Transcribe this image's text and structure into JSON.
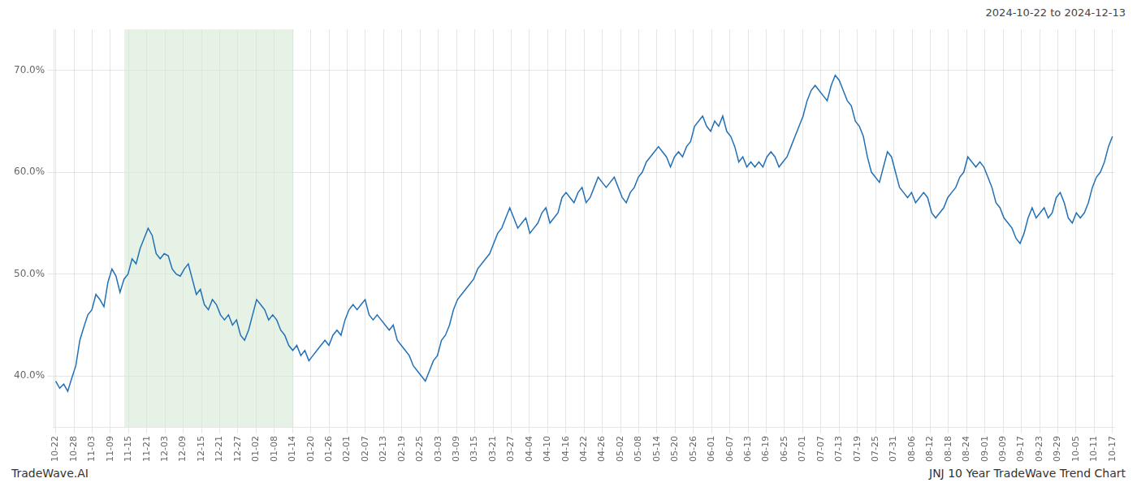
{
  "chart_data": {
    "type": "line",
    "annotations": [
      "2024-10-22 to 2024-12-13",
      "TradeWave.AI",
      "JNJ 10 Year TradeWave Trend Chart"
    ],
    "color": "#2270b5",
    "grid": true,
    "shaded_region": {
      "start": 17.095,
      "end": 59.175,
      "color": "#d4ead4"
    },
    "ylim": [
      35.0,
      74.0
    ],
    "yticks": [
      {
        "value": 40.0,
        "label": "40.0%"
      },
      {
        "value": 50.0,
        "label": "50.0%"
      },
      {
        "value": 60.0,
        "label": "60.0%"
      },
      {
        "value": 70.0,
        "label": "70.0%"
      }
    ],
    "xlim": [
      -0.5,
      263.5
    ],
    "xticks": [
      {
        "value": 0,
        "label": "10-22"
      },
      {
        "value": 4.5345,
        "label": "10-28"
      },
      {
        "value": 9.069,
        "label": "11-03"
      },
      {
        "value": 13.6034,
        "label": "11-09"
      },
      {
        "value": 18.1379,
        "label": "11-15"
      },
      {
        "value": 22.6724,
        "label": "11-21"
      },
      {
        "value": 27.2069,
        "label": "12-03"
      },
      {
        "value": 31.7414,
        "label": "12-09"
      },
      {
        "value": 36.2759,
        "label": "12-15"
      },
      {
        "value": 40.8103,
        "label": "12-21"
      },
      {
        "value": 45.3448,
        "label": "12-27"
      },
      {
        "value": 49.8793,
        "label": "01-02"
      },
      {
        "value": 54.4138,
        "label": "01-08"
      },
      {
        "value": 58.9483,
        "label": "01-14"
      },
      {
        "value": 63.4828,
        "label": "01-20"
      },
      {
        "value": 68.0172,
        "label": "01-26"
      },
      {
        "value": 72.5517,
        "label": "02-01"
      },
      {
        "value": 77.0862,
        "label": "02-07"
      },
      {
        "value": 81.6207,
        "label": "02-13"
      },
      {
        "value": 86.1552,
        "label": "02-19"
      },
      {
        "value": 90.6897,
        "label": "02-25"
      },
      {
        "value": 95.2241,
        "label": "03-03"
      },
      {
        "value": 99.7586,
        "label": "03-09"
      },
      {
        "value": 104.2931,
        "label": "03-15"
      },
      {
        "value": 108.8276,
        "label": "03-21"
      },
      {
        "value": 113.3621,
        "label": "03-27"
      },
      {
        "value": 117.8966,
        "label": "04-04"
      },
      {
        "value": 122.431,
        "label": "04-10"
      },
      {
        "value": 126.9655,
        "label": "04-16"
      },
      {
        "value": 131.5,
        "label": "04-22"
      },
      {
        "value": 136.0345,
        "label": "04-26"
      },
      {
        "value": 140.569,
        "label": "05-02"
      },
      {
        "value": 145.1034,
        "label": "05-08"
      },
      {
        "value": 149.6379,
        "label": "05-14"
      },
      {
        "value": 154.1724,
        "label": "05-20"
      },
      {
        "value": 158.7069,
        "label": "05-26"
      },
      {
        "value": 163.2414,
        "label": "06-01"
      },
      {
        "value": 167.7759,
        "label": "06-07"
      },
      {
        "value": 172.3103,
        "label": "06-13"
      },
      {
        "value": 176.8448,
        "label": "06-19"
      },
      {
        "value": 181.3793,
        "label": "06-25"
      },
      {
        "value": 185.9138,
        "label": "07-01"
      },
      {
        "value": 190.4483,
        "label": "07-07"
      },
      {
        "value": 194.9828,
        "label": "07-13"
      },
      {
        "value": 199.5172,
        "label": "07-19"
      },
      {
        "value": 204.0517,
        "label": "07-25"
      },
      {
        "value": 208.5862,
        "label": "07-31"
      },
      {
        "value": 213.1207,
        "label": "08-06"
      },
      {
        "value": 217.6552,
        "label": "08-12"
      },
      {
        "value": 222.1897,
        "label": "08-18"
      },
      {
        "value": 226.7241,
        "label": "08-24"
      },
      {
        "value": 231.2586,
        "label": "09-01"
      },
      {
        "value": 235.7931,
        "label": "09-09"
      },
      {
        "value": 240.3276,
        "label": "09-17"
      },
      {
        "value": 244.8621,
        "label": "09-23"
      },
      {
        "value": 249.3966,
        "label": "09-29"
      },
      {
        "value": 253.931,
        "label": "10-05"
      },
      {
        "value": 258.4655,
        "label": "10-11"
      },
      {
        "value": 263,
        "label": "10-17"
      }
    ],
    "values": [
      39.5,
      38.8,
      39.2,
      38.5,
      39.8,
      41.0,
      43.5,
      44.8,
      46.0,
      46.5,
      48.0,
      47.5,
      46.8,
      49.2,
      50.5,
      49.8,
      48.2,
      49.5,
      50.0,
      51.5,
      51.0,
      52.5,
      53.5,
      54.5,
      53.8,
      52.0,
      51.5,
      52.0,
      51.8,
      50.5,
      50.0,
      49.8,
      50.5,
      51.0,
      49.5,
      48.0,
      48.5,
      47.0,
      46.5,
      47.5,
      47.0,
      46.0,
      45.5,
      46.0,
      45.0,
      45.5,
      44.0,
      43.5,
      44.5,
      46.0,
      47.5,
      47.0,
      46.5,
      45.5,
      46.0,
      45.5,
      44.5,
      44.0,
      43.0,
      42.5,
      43.0,
      42.0,
      42.5,
      41.5,
      42.0,
      42.5,
      43.0,
      43.5,
      43.0,
      44.0,
      44.5,
      44.0,
      45.5,
      46.5,
      47.0,
      46.5,
      47.0,
      47.5,
      46.0,
      45.5,
      46.0,
      45.5,
      45.0,
      44.5,
      45.0,
      43.5,
      43.0,
      42.5,
      42.0,
      41.0,
      40.5,
      40.0,
      39.5,
      40.5,
      41.5,
      42.0,
      43.5,
      44.0,
      45.0,
      46.5,
      47.5,
      48.0,
      48.5,
      49.0,
      49.5,
      50.5,
      51.0,
      51.5,
      52.0,
      53.0,
      54.0,
      54.5,
      55.5,
      56.5,
      55.5,
      54.5,
      55.0,
      55.5,
      54.0,
      54.5,
      55.0,
      56.0,
      56.5,
      55.0,
      55.5,
      56.0,
      57.5,
      58.0,
      57.5,
      57.0,
      58.0,
      58.5,
      57.0,
      57.5,
      58.5,
      59.5,
      59.0,
      58.5,
      59.0,
      59.5,
      58.5,
      57.5,
      57.0,
      58.0,
      58.5,
      59.5,
      60.0,
      61.0,
      61.5,
      62.0,
      62.5,
      62.0,
      61.5,
      60.5,
      61.5,
      62.0,
      61.5,
      62.5,
      63.0,
      64.5,
      65.0,
      65.5,
      64.5,
      64.0,
      65.0,
      64.5,
      65.5,
      64.0,
      63.5,
      62.5,
      61.0,
      61.5,
      60.5,
      61.0,
      60.5,
      61.0,
      60.5,
      61.5,
      62.0,
      61.5,
      60.5,
      61.0,
      61.5,
      62.5,
      63.5,
      64.5,
      65.5,
      67.0,
      68.0,
      68.5,
      68.0,
      67.5,
      67.0,
      68.5,
      69.5,
      69.0,
      68.0,
      67.0,
      66.5,
      65.0,
      64.5,
      63.5,
      61.5,
      60.0,
      59.5,
      59.0,
      60.5,
      62.0,
      61.5,
      60.0,
      58.5,
      58.0,
      57.5,
      58.0,
      57.0,
      57.5,
      58.0,
      57.5,
      56.0,
      55.5,
      56.0,
      56.5,
      57.5,
      58.0,
      58.5,
      59.5,
      60.0,
      61.5,
      61.0,
      60.5,
      61.0,
      60.5,
      59.5,
      58.5,
      57.0,
      56.5,
      55.5,
      55.0,
      54.5,
      53.5,
      53.0,
      54.0,
      55.5,
      56.5,
      55.5,
      56.0,
      56.5,
      55.5,
      56.0,
      57.5,
      58.0,
      57.0,
      55.5,
      55.0,
      56.0,
      55.5,
      56.0,
      57.0,
      58.5,
      59.5,
      60.0,
      61.0,
      62.5,
      63.5
    ]
  }
}
